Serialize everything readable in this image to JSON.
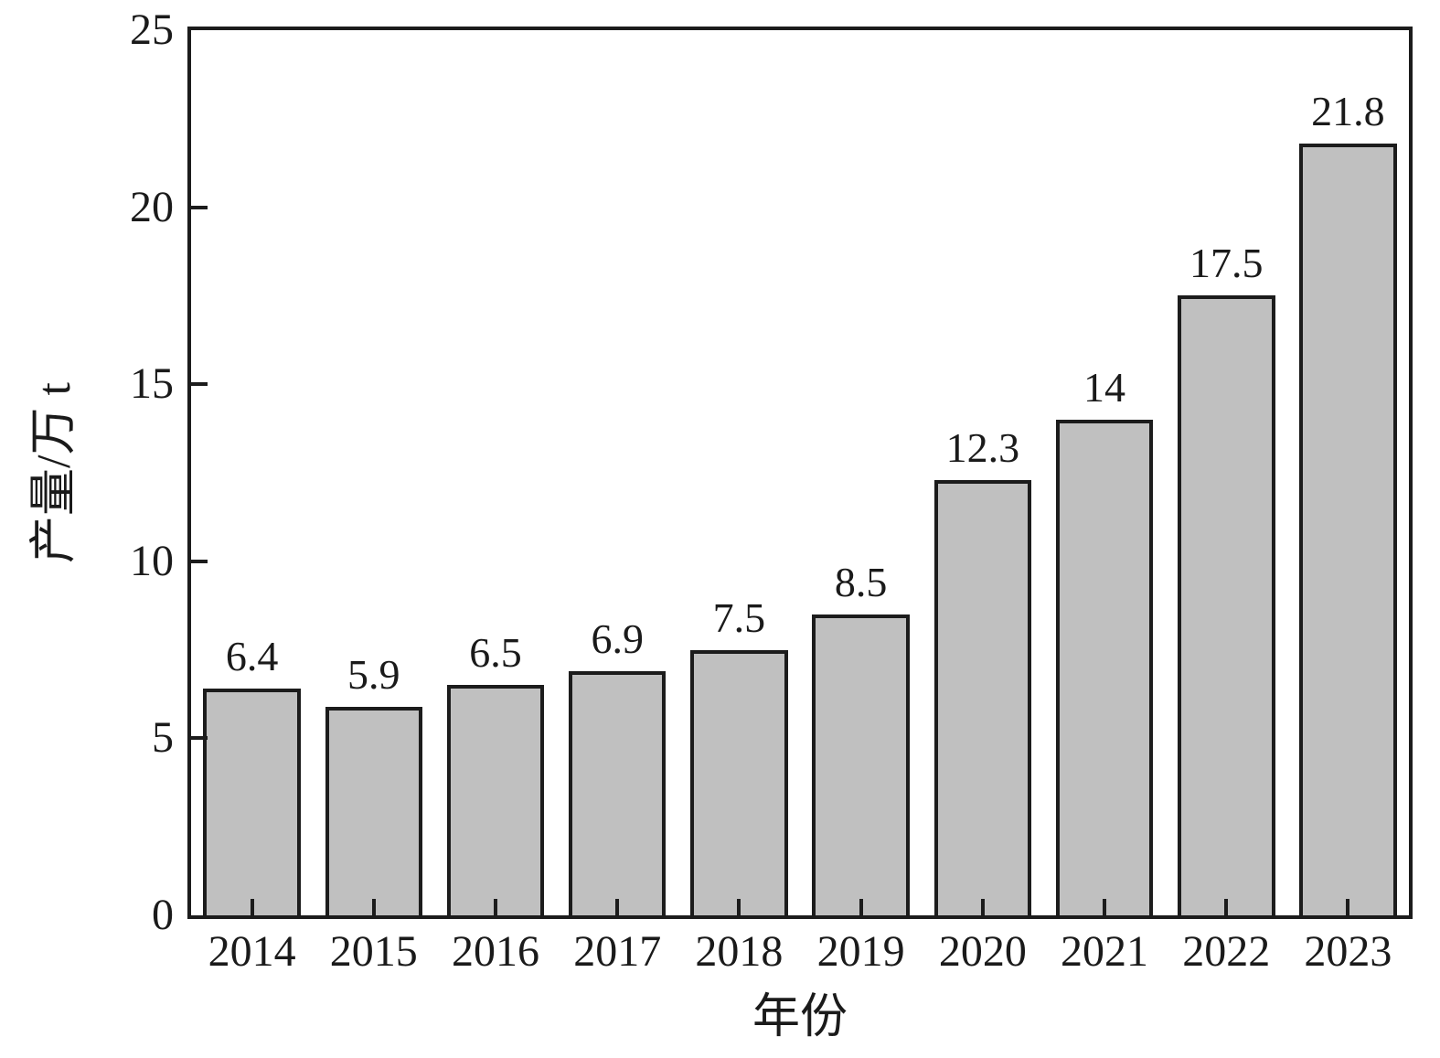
{
  "chart_data": {
    "type": "bar",
    "categories": [
      "2014",
      "2015",
      "2016",
      "2017",
      "2018",
      "2019",
      "2020",
      "2021",
      "2022",
      "2023"
    ],
    "values": [
      6.4,
      5.9,
      6.5,
      6.9,
      7.5,
      8.5,
      12.3,
      14,
      17.5,
      21.8
    ],
    "value_labels": [
      "6.4",
      "5.9",
      "6.5",
      "6.9",
      "7.5",
      "8.5",
      "12.3",
      "14",
      "17.5",
      "21.8"
    ],
    "title": "",
    "xlabel": "年份",
    "ylabel": "产量/万 t",
    "ylim": [
      0,
      25
    ],
    "yticks": [
      0,
      5,
      10,
      15,
      20,
      25
    ],
    "ytick_labels": [
      "0",
      "5",
      "10",
      "15",
      "20",
      "25"
    ],
    "grid": false,
    "legend_position": "none",
    "bar_fill_color": "#c0c0c0",
    "bar_border_color": "#1c1c1c",
    "axis_color": "#1c1c1c",
    "text_color": "#1a1a1a",
    "background_color": "#ffffff"
  }
}
